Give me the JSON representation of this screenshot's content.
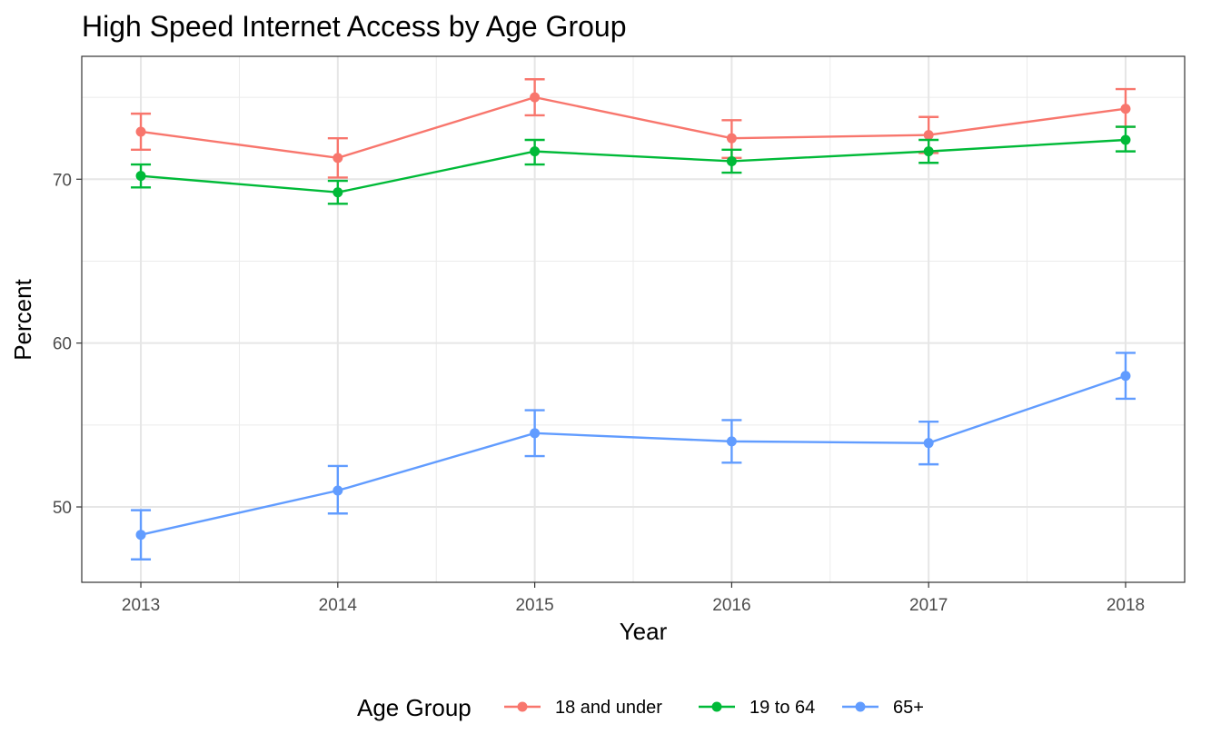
{
  "chart_data": {
    "type": "line",
    "title": "High Speed Internet Access by Age Group",
    "xlabel": "Year",
    "ylabel": "Percent",
    "x": [
      2013,
      2014,
      2015,
      2016,
      2017,
      2018
    ],
    "x_tick_labels": [
      "2013",
      "2014",
      "2015",
      "2016",
      "2017",
      "2018"
    ],
    "y_ticks": [
      50,
      60,
      70
    ],
    "y_tick_labels": [
      "50",
      "60",
      "70"
    ],
    "xlim": [
      2012.7,
      2018.3
    ],
    "ylim": [
      45.4,
      77.5
    ],
    "grid": true,
    "error_bars": true,
    "legend": {
      "title": "Age Group",
      "position": "bottom"
    },
    "series": [
      {
        "name": "18 and under",
        "color": "#F8766D",
        "values": [
          72.9,
          71.3,
          75.0,
          72.5,
          72.7,
          74.3
        ],
        "lower": [
          71.8,
          70.1,
          73.9,
          71.3,
          71.6,
          73.2
        ],
        "upper": [
          74.0,
          72.5,
          76.1,
          73.6,
          73.8,
          75.5
        ]
      },
      {
        "name": "19 to 64",
        "color": "#00BA38",
        "values": [
          70.2,
          69.2,
          71.7,
          71.1,
          71.7,
          72.4
        ],
        "lower": [
          69.5,
          68.5,
          70.9,
          70.4,
          71.0,
          71.7
        ],
        "upper": [
          70.9,
          69.9,
          72.4,
          71.8,
          72.4,
          73.2
        ]
      },
      {
        "name": "65+",
        "color": "#619CFF",
        "values": [
          48.3,
          51.0,
          54.5,
          54.0,
          53.9,
          58.0
        ],
        "lower": [
          46.8,
          49.6,
          53.1,
          52.7,
          52.6,
          56.6
        ],
        "upper": [
          49.8,
          52.5,
          55.9,
          55.3,
          55.2,
          59.4
        ]
      }
    ]
  }
}
